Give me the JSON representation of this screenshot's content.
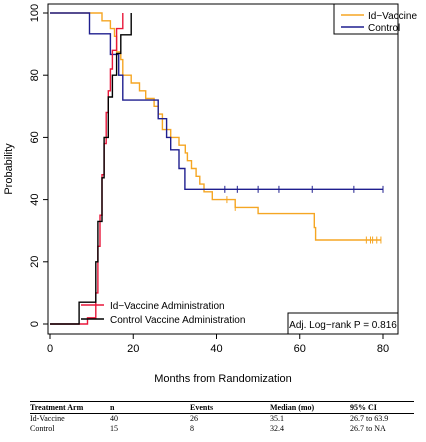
{
  "chart_data": {
    "type": "line",
    "xlabel": "Months from Randomization",
    "ylabel": "Probability",
    "xlim": [
      0,
      85
    ],
    "ylim": [
      0,
      100
    ],
    "x_ticks": [
      0,
      20,
      40,
      60,
      80
    ],
    "y_ticks": [
      0,
      20,
      40,
      60,
      80,
      100
    ],
    "grid": false,
    "legend_top": {
      "placement": "top-right",
      "entries": [
        {
          "name": "Id−Vaccine",
          "color": "#f5a623"
        },
        {
          "name": "Control",
          "color": "#1f1f8f"
        }
      ]
    },
    "legend_bottom": {
      "placement": "bottom-left",
      "entries": [
        {
          "name": "Id−Vaccine Administration",
          "color": "#e8173a"
        },
        {
          "name": "Control Vaccine Administration",
          "color": "#000000"
        }
      ]
    },
    "annotation": "Adj. Log−rank P = 0.816",
    "series": [
      {
        "name": "Id−Vaccine",
        "kind": "survival",
        "color": "#f5a623",
        "points": [
          [
            0,
            100
          ],
          [
            12.5,
            100
          ],
          [
            12.5,
            97.5
          ],
          [
            14.5,
            97.5
          ],
          [
            14.5,
            95
          ],
          [
            15.5,
            95
          ],
          [
            15.5,
            92.5
          ],
          [
            16,
            92.5
          ],
          [
            16,
            87.5
          ],
          [
            17,
            87.5
          ],
          [
            17,
            85
          ],
          [
            17.5,
            85
          ],
          [
            17.5,
            80
          ],
          [
            19.5,
            80
          ],
          [
            19.5,
            77.5
          ],
          [
            21.5,
            77.5
          ],
          [
            21.5,
            75
          ],
          [
            23,
            75
          ],
          [
            23,
            72.5
          ],
          [
            25,
            72.5
          ],
          [
            25,
            70
          ],
          [
            26,
            70
          ],
          [
            26,
            67.5
          ],
          [
            27,
            67.5
          ],
          [
            27,
            62.5
          ],
          [
            29,
            62.5
          ],
          [
            29,
            60
          ],
          [
            31,
            60
          ],
          [
            31,
            57.5
          ],
          [
            32.5,
            57.5
          ],
          [
            32.5,
            55
          ],
          [
            33,
            55
          ],
          [
            33,
            52.5
          ],
          [
            34,
            52.5
          ],
          [
            34,
            50
          ],
          [
            35.1,
            50
          ],
          [
            35.1,
            47.5
          ],
          [
            36,
            47.5
          ],
          [
            36,
            45
          ],
          [
            37,
            45
          ],
          [
            37,
            42.5
          ],
          [
            39,
            42.5
          ],
          [
            39,
            40
          ],
          [
            41,
            40
          ],
          [
            41,
            40
          ],
          [
            44.5,
            40
          ],
          [
            44.5,
            37.5
          ],
          [
            50,
            37.5
          ],
          [
            50,
            35.5
          ],
          [
            55,
            35.5
          ],
          [
            55,
            35.5
          ],
          [
            63.5,
            35.5
          ],
          [
            63.5,
            31
          ],
          [
            63.8,
            31
          ],
          [
            63.8,
            27
          ],
          [
            79.5,
            27
          ]
        ],
        "censor_marks": [
          42.5,
          44.5,
          76,
          77,
          77.5,
          78.5,
          79.5
        ]
      },
      {
        "name": "Control",
        "kind": "survival",
        "color": "#1f1f8f",
        "points": [
          [
            0,
            100
          ],
          [
            9.5,
            100
          ],
          [
            9.5,
            93.3
          ],
          [
            14.5,
            93.3
          ],
          [
            14.5,
            86.7
          ],
          [
            16.5,
            86.7
          ],
          [
            16.5,
            80
          ],
          [
            17.5,
            80
          ],
          [
            17.5,
            72
          ],
          [
            26,
            72
          ],
          [
            26,
            66
          ],
          [
            28,
            66
          ],
          [
            28,
            60
          ],
          [
            29,
            60
          ],
          [
            29,
            56
          ],
          [
            31,
            56
          ],
          [
            31,
            50
          ],
          [
            32.4,
            50
          ],
          [
            32.4,
            43.3
          ],
          [
            80,
            43.3
          ]
        ],
        "censor_marks": [
          42,
          45,
          50,
          55,
          63,
          73,
          80
        ]
      },
      {
        "name": "Id−Vaccine Administration",
        "kind": "cumulative",
        "color": "#e8173a",
        "points": [
          [
            0,
            0
          ],
          [
            9,
            0
          ],
          [
            9,
            2
          ],
          [
            11,
            2
          ],
          [
            11,
            10
          ],
          [
            11.5,
            10
          ],
          [
            11.5,
            25
          ],
          [
            12,
            25
          ],
          [
            12,
            35
          ],
          [
            12.5,
            35
          ],
          [
            12.5,
            48
          ],
          [
            13,
            48
          ],
          [
            13,
            58
          ],
          [
            13.5,
            58
          ],
          [
            13.5,
            68
          ],
          [
            14,
            68
          ],
          [
            14,
            75
          ],
          [
            14.5,
            75
          ],
          [
            14.5,
            82
          ],
          [
            15,
            82
          ],
          [
            15,
            88
          ],
          [
            16,
            88
          ],
          [
            16,
            95
          ],
          [
            17.5,
            95
          ],
          [
            17.5,
            100
          ]
        ]
      },
      {
        "name": "Control Vaccine Administration",
        "kind": "cumulative",
        "color": "#000000",
        "points": [
          [
            0,
            0
          ],
          [
            7,
            0
          ],
          [
            7,
            7
          ],
          [
            11,
            7
          ],
          [
            11,
            20
          ],
          [
            11.5,
            20
          ],
          [
            11.5,
            33
          ],
          [
            12.5,
            33
          ],
          [
            12.5,
            47
          ],
          [
            13,
            47
          ],
          [
            13,
            60
          ],
          [
            14,
            60
          ],
          [
            14,
            73
          ],
          [
            15,
            73
          ],
          [
            15,
            80
          ],
          [
            16,
            80
          ],
          [
            16,
            87
          ],
          [
            17,
            87
          ],
          [
            17,
            93
          ],
          [
            19.5,
            93
          ],
          [
            19.5,
            100
          ]
        ]
      }
    ]
  },
  "table": {
    "headers": [
      "Treatment Arm",
      "n",
      "Events",
      "Median (mo)",
      "95% CI"
    ],
    "rows": [
      [
        "Id-Vaccine",
        "40",
        "26",
        "35.1",
        "26.7 to 63.9"
      ],
      [
        "Control",
        "15",
        "8",
        "32.4",
        "26.7 to NA"
      ]
    ]
  }
}
